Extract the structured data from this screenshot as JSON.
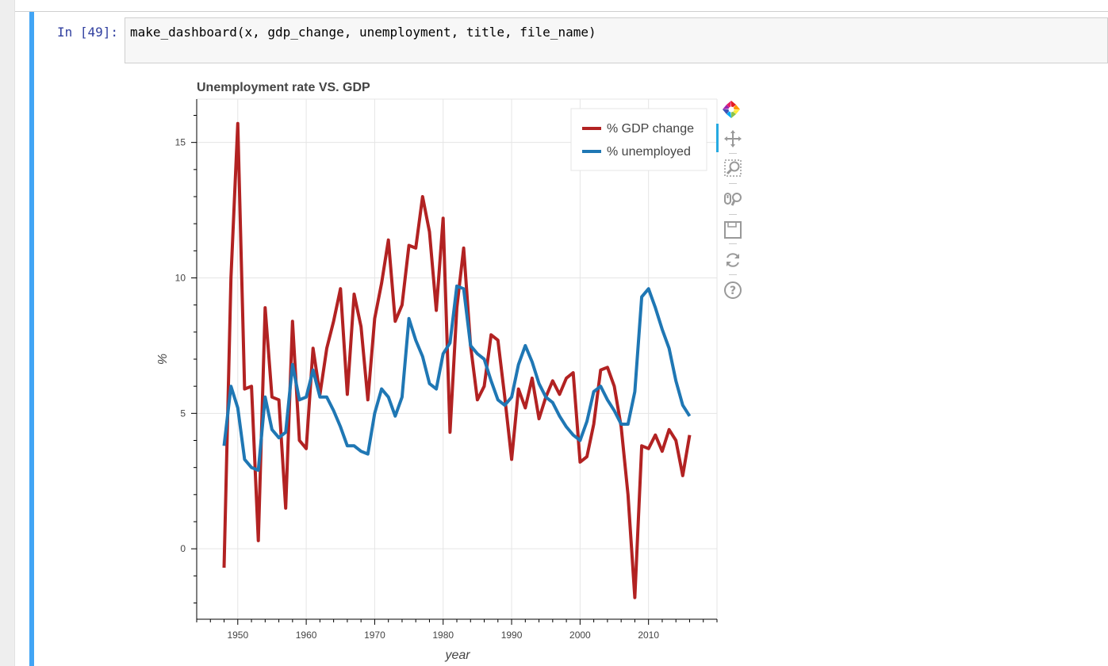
{
  "cell": {
    "prompt": "In [49]:",
    "code": "make_dashboard(x, gdp_change, unemployment, title, file_name)"
  },
  "toolbar": {
    "items": [
      "bokeh-logo-icon",
      "pan-icon",
      "box-zoom-icon",
      "wheel-zoom-icon",
      "save-icon",
      "reset-icon",
      "help-icon"
    ],
    "active_color": "#26aae1"
  },
  "chart_data": {
    "type": "line",
    "title": "Unemployment rate VS. GDP",
    "xlabel": "year",
    "ylabel": "%",
    "xlim": [
      1944,
      2020
    ],
    "ylim": [
      -2.6,
      16.6
    ],
    "xticks": [
      1950,
      1960,
      1970,
      1980,
      1990,
      2000,
      2010
    ],
    "yticks": [
      0,
      5,
      10,
      15
    ],
    "grid": true,
    "legend_position": "top-right",
    "x": [
      1948,
      1949,
      1950,
      1951,
      1952,
      1953,
      1954,
      1955,
      1956,
      1957,
      1958,
      1959,
      1960,
      1961,
      1962,
      1963,
      1964,
      1965,
      1966,
      1967,
      1968,
      1969,
      1970,
      1971,
      1972,
      1973,
      1974,
      1975,
      1976,
      1977,
      1978,
      1979,
      1980,
      1981,
      1982,
      1983,
      1984,
      1985,
      1986,
      1987,
      1988,
      1989,
      1990,
      1991,
      1992,
      1993,
      1994,
      1995,
      1996,
      1997,
      1998,
      1999,
      2000,
      2001,
      2002,
      2003,
      2004,
      2005,
      2006,
      2007,
      2008,
      2009,
      2010,
      2011,
      2012,
      2013,
      2014,
      2015,
      2016
    ],
    "series": [
      {
        "name": "% GDP change",
        "color": "#b22222",
        "values": [
          -0.7,
          10.0,
          15.7,
          5.9,
          6.0,
          0.3,
          8.9,
          5.6,
          5.5,
          1.5,
          8.4,
          4.0,
          3.7,
          7.4,
          5.7,
          7.4,
          8.4,
          9.6,
          5.7,
          9.4,
          8.2,
          5.5,
          8.5,
          9.8,
          11.4,
          8.4,
          9.0,
          11.2,
          11.1,
          13.0,
          11.7,
          8.8,
          12.2,
          4.3,
          8.9,
          11.1,
          7.5,
          5.5,
          6.0,
          7.9,
          7.7,
          5.6,
          3.3,
          5.9,
          5.2,
          6.3,
          4.8,
          5.6,
          6.2,
          5.7,
          6.3,
          6.5,
          3.2,
          3.4,
          4.6,
          6.6,
          6.7,
          6.0,
          4.5,
          2.0,
          -1.8,
          3.8,
          3.7,
          4.2,
          3.6,
          4.4,
          4.0,
          2.7,
          4.2
        ]
      },
      {
        "name": "% unemployed",
        "color": "#1f77b4",
        "values": [
          3.8,
          6.0,
          5.2,
          3.3,
          3.0,
          2.9,
          5.6,
          4.4,
          4.1,
          4.3,
          6.8,
          5.5,
          5.6,
          6.6,
          5.6,
          5.6,
          5.1,
          4.5,
          3.8,
          3.8,
          3.6,
          3.5,
          5.0,
          5.9,
          5.6,
          4.9,
          5.6,
          8.5,
          7.7,
          7.1,
          6.1,
          5.9,
          7.2,
          7.6,
          9.7,
          9.6,
          7.5,
          7.2,
          7.0,
          6.2,
          5.5,
          5.3,
          5.6,
          6.8,
          7.5,
          6.9,
          6.1,
          5.6,
          5.4,
          4.9,
          4.5,
          4.2,
          4.0,
          4.7,
          5.8,
          6.0,
          5.5,
          5.1,
          4.6,
          4.6,
          5.8,
          9.3,
          9.6,
          8.9,
          8.1,
          7.4,
          6.2,
          5.3,
          4.9
        ]
      }
    ]
  }
}
